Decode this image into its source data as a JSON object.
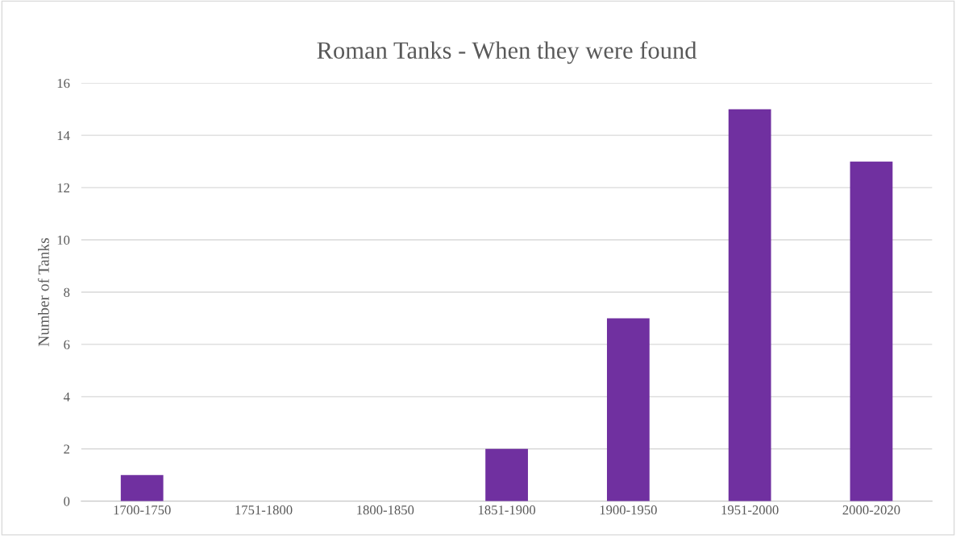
{
  "chart_data": {
    "type": "bar",
    "title": "Roman Tanks - When they were found",
    "ylabel": "Number of Tanks",
    "categories": [
      "1700-1750",
      "1751-1800",
      "1800-1850",
      "1851-1900",
      "1900-1950",
      "1951-2000",
      "2000-2020"
    ],
    "values": [
      1,
      0,
      0,
      2,
      7,
      15,
      13
    ],
    "color": "#7030a0",
    "ylim": [
      0,
      16
    ],
    "yticks": [
      0,
      2,
      4,
      6,
      8,
      10,
      12,
      14,
      16
    ],
    "grid": "y",
    "legend": false
  }
}
